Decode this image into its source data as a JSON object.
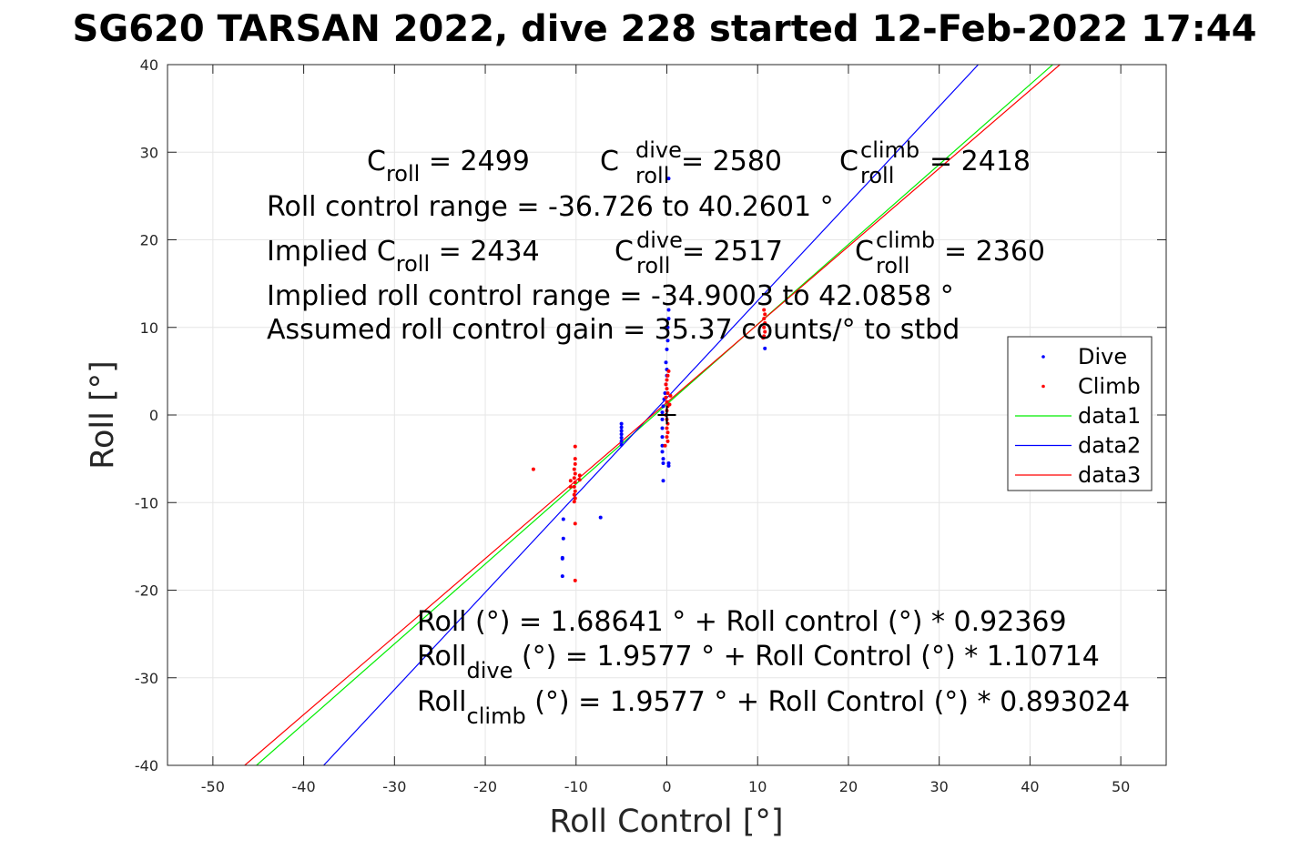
{
  "chart_data": {
    "type": "scatter",
    "title": "SG620 TARSAN 2022, dive 228 started 12-Feb-2022 17:44",
    "xlabel": "Roll Control [°]",
    "ylabel": "Roll [°]",
    "xlim": [
      -55,
      55
    ],
    "ylim": [
      -40,
      40
    ],
    "xticks": [
      -50,
      -40,
      -30,
      -20,
      -10,
      0,
      10,
      20,
      30,
      40,
      50
    ],
    "yticks": [
      -40,
      -30,
      -20,
      -10,
      0,
      10,
      20,
      30,
      40
    ],
    "grid": true,
    "legend_position": "right",
    "legend": [
      "Dive",
      "Climb",
      "data1",
      "data2",
      "data3"
    ],
    "series": [
      {
        "name": "Dive",
        "kind": "points",
        "color": "#0000ff",
        "points": [
          [
            0.2,
            27
          ],
          [
            0.2,
            12
          ],
          [
            0.2,
            11
          ],
          [
            0.1,
            10
          ],
          [
            0.1,
            8.5
          ],
          [
            0.0,
            7.5
          ],
          [
            -0.1,
            6
          ],
          [
            0.0,
            5.2
          ],
          [
            0.0,
            4.5
          ],
          [
            -0.1,
            3.5
          ],
          [
            -0.2,
            2.5
          ],
          [
            -0.3,
            1.8
          ],
          [
            -0.4,
            1
          ],
          [
            -0.5,
            0.3
          ],
          [
            -0.5,
            -0.5
          ],
          [
            -0.5,
            -1.5
          ],
          [
            -0.5,
            -2.5
          ],
          [
            -0.5,
            -3.5
          ],
          [
            -0.5,
            -4.2
          ],
          [
            -0.4,
            -5
          ],
          [
            -0.4,
            -5.5
          ],
          [
            -0.4,
            -7.5
          ],
          [
            0.2,
            -5.5
          ],
          [
            0.2,
            -5.8
          ],
          [
            -5,
            -1
          ],
          [
            -5,
            -1.4
          ],
          [
            -5,
            -1.8
          ],
          [
            -5,
            -2.2
          ],
          [
            -5,
            -2.6
          ],
          [
            -5,
            -3
          ],
          [
            -5,
            -3.4
          ],
          [
            -11.4,
            -11.9
          ],
          [
            -11.4,
            -14.1
          ],
          [
            -11.5,
            -16.3
          ],
          [
            -11.5,
            -16.4
          ],
          [
            -11.5,
            -18.4
          ],
          [
            -7.3,
            -11.7
          ],
          [
            10.8,
            7.6
          ]
        ]
      },
      {
        "name": "Climb",
        "kind": "points",
        "color": "#ff0000",
        "points": [
          [
            -14.7,
            -6.2
          ],
          [
            -10.1,
            -3.6
          ],
          [
            -10.1,
            -5
          ],
          [
            -10.1,
            -5.6
          ],
          [
            -10.2,
            -6.2
          ],
          [
            -10.1,
            -6.7
          ],
          [
            -10.2,
            -7.2
          ],
          [
            -10.1,
            -7.7
          ],
          [
            -10.2,
            -8.2
          ],
          [
            -10.1,
            -8.7
          ],
          [
            -10.2,
            -9.1
          ],
          [
            -10.1,
            -9.5
          ],
          [
            -10.2,
            -9.9
          ],
          [
            -9.6,
            -6.9
          ],
          [
            -9.6,
            -7.4
          ],
          [
            -10.6,
            -7.5
          ],
          [
            -10.6,
            -8.2
          ],
          [
            -10.1,
            -12.4
          ],
          [
            -10.1,
            -18.9
          ],
          [
            0.2,
            5
          ],
          [
            0.1,
            4.5
          ],
          [
            0.0,
            4
          ],
          [
            -0.1,
            3.5
          ],
          [
            0.0,
            3
          ],
          [
            0.1,
            2.5
          ],
          [
            -0.1,
            2.0
          ],
          [
            0.0,
            1.5
          ],
          [
            0.1,
            1
          ],
          [
            0.0,
            0.5
          ],
          [
            -0.1,
            0
          ],
          [
            0.0,
            -0.5
          ],
          [
            0.1,
            -1
          ],
          [
            0.0,
            -1.5
          ],
          [
            0.1,
            -2
          ],
          [
            0.0,
            -2.5
          ],
          [
            0.1,
            -3
          ],
          [
            -0.2,
            -3.5
          ],
          [
            0.4,
            2.2
          ],
          [
            0.3,
            1.2
          ],
          [
            10.7,
            12
          ],
          [
            10.8,
            11.5
          ],
          [
            10.7,
            11
          ],
          [
            10.8,
            10.5
          ],
          [
            10.7,
            10
          ],
          [
            10.8,
            9.5
          ],
          [
            10.7,
            9
          ],
          [
            10.6,
            8.8
          ]
        ]
      },
      {
        "name": "data1",
        "kind": "line",
        "color": "#00ee00",
        "x": [
          -45.2,
          42.5
        ],
        "y": [
          -40,
          40
        ]
      },
      {
        "name": "data2",
        "kind": "line",
        "color": "#0000ff",
        "x": [
          -37.8,
          34.3
        ],
        "y": [
          -40,
          40
        ]
      },
      {
        "name": "data3",
        "kind": "line",
        "color": "#ff0000",
        "x": [
          -46.5,
          43.3
        ],
        "y": [
          -40,
          40
        ]
      }
    ],
    "marker": {
      "x": 0,
      "y": 0,
      "symbol": "+"
    }
  },
  "annotations": {
    "c_roll_base": "C",
    "c_roll_sub": "roll",
    "c_roll_value": " = 2499",
    "c_dive_base": "C",
    "c_dive_sup": "dive",
    "c_dive_sub": "roll",
    "c_dive_value": " = 2580",
    "c_climb_base": "C",
    "c_climb_sup": "climb",
    "c_climb_sub": "roll",
    "c_climb_value": " = 2418",
    "roll_range": "Roll control range = -36.726 to 40.2601 °",
    "implied_prefix": "Implied C",
    "implied_sub": "roll",
    "implied_value": " = 2434",
    "implied_dive_base": "C",
    "implied_dive_sup": "dive",
    "implied_dive_sub": "roll",
    "implied_dive_value": " = 2517",
    "implied_climb_base": "C",
    "implied_climb_sup": "climb",
    "implied_climb_sub": "roll",
    "implied_climb_value": " = 2360",
    "implied_range": "Implied roll control range = -34.9003 to 42.0858 °",
    "gain": "Assumed roll control gain = 35.37 counts/° to stbd",
    "fit_all": "Roll (°) = 1.68641 ° + Roll control (°) * 0.92369",
    "fit_dive_base": "Roll",
    "fit_dive_sub": "dive",
    "fit_dive_rest": " (°) = 1.9577 ° + Roll Control (°) * 1.10714",
    "fit_climb_base": "Roll",
    "fit_climb_sub": "climb",
    "fit_climb_rest": " (°) = 1.9577 ° + Roll Control (°) * 0.893024"
  }
}
